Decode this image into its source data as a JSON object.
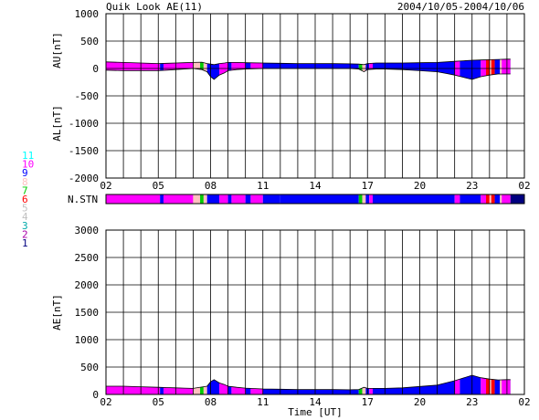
{
  "header": {
    "title": "Quik Look AE(11)",
    "date_range": "2004/10/05-2004/10/06"
  },
  "stations_label": "N.STN",
  "xlabel": "Time [UT]",
  "station_legend": [
    {
      "label": "11",
      "color": "#00ffff"
    },
    {
      "label": "10",
      "color": "#ff00ff"
    },
    {
      "label": "9",
      "color": "#0000ff"
    },
    {
      "label": "8",
      "color": "#ffc0c0"
    },
    {
      "label": "7",
      "color": "#00cc00"
    },
    {
      "label": "6",
      "color": "#ff0000"
    },
    {
      "label": "5",
      "color": "#c0c0c0"
    },
    {
      "label": "4",
      "color": "#c0c0c0"
    },
    {
      "label": "3",
      "color": "#00aaaa"
    },
    {
      "label": "2",
      "color": "#aa00aa"
    },
    {
      "label": "1",
      "color": "#000080"
    }
  ],
  "chart_data": [
    {
      "type": "area",
      "panel": "AU/AL",
      "ylabel_top": "AU[nT]",
      "ylabel_bottom": "AL[nT]",
      "ylim": [
        -2000,
        1000
      ],
      "yticks": [
        "1000",
        "500",
        "0",
        "-500",
        "-1000",
        "-1500",
        "-2000"
      ],
      "xticks": [
        "02",
        "05",
        "08",
        "11",
        "14",
        "17",
        "20",
        "23",
        "02"
      ],
      "xlim_hours": [
        2,
        26
      ],
      "grid": true,
      "series": [
        {
          "x": [
            2,
            3,
            4,
            5,
            5.5,
            6,
            6.5,
            7,
            7.5,
            7.8,
            8,
            8.2,
            8.5,
            8.8,
            9,
            9.5,
            10,
            11,
            12,
            13,
            14,
            15,
            16,
            16.5,
            16.8,
            17,
            17.5,
            18,
            19,
            20,
            21,
            21.5,
            22,
            22.5,
            23,
            23.5,
            24,
            24.5,
            25,
            25.2
          ],
          "values": [
            120,
            110,
            100,
            90,
            95,
            100,
            105,
            110,
            115,
            90,
            80,
            70,
            90,
            100,
            110,
            110,
            105,
            100,
            95,
            90,
            90,
            90,
            85,
            80,
            70,
            90,
            100,
            100,
            100,
            105,
            110,
            120,
            130,
            140,
            150,
            155,
            160,
            165,
            170,
            170
          ]
        },
        {
          "x": [
            2,
            3,
            4,
            5,
            5.5,
            6,
            6.5,
            7,
            7.5,
            7.8,
            8,
            8.2,
            8.5,
            8.8,
            9,
            9.5,
            10,
            11,
            12,
            13,
            14,
            15,
            16,
            16.5,
            16.8,
            17,
            17.5,
            18,
            19,
            20,
            21,
            21.5,
            22,
            22.5,
            23,
            23.5,
            24,
            24.5,
            25,
            25.2
          ],
          "values": [
            -30,
            -40,
            -40,
            -40,
            -30,
            -20,
            -10,
            0,
            -20,
            -60,
            -150,
            -200,
            -120,
            -80,
            -40,
            -20,
            -10,
            0,
            0,
            0,
            0,
            0,
            0,
            -10,
            -60,
            -20,
            -10,
            -10,
            -20,
            -40,
            -60,
            -90,
            -120,
            -160,
            -200,
            -150,
            -120,
            -100,
            -100,
            -100
          ]
        }
      ]
    },
    {
      "type": "area",
      "panel": "AE",
      "ylabel": "AE[nT]",
      "xlabel": "Time [UT]",
      "ylim": [
        0,
        3000
      ],
      "yticks": [
        "3000",
        "2500",
        "2000",
        "1500",
        "1000",
        "500",
        "0"
      ],
      "xticks": [
        "02",
        "05",
        "08",
        "11",
        "14",
        "17",
        "20",
        "23",
        "02"
      ],
      "xlim_hours": [
        2,
        26
      ],
      "grid": true,
      "series": [
        {
          "x": [
            2,
            3,
            4,
            5,
            5.5,
            6,
            6.5,
            7,
            7.5,
            7.8,
            8,
            8.2,
            8.5,
            8.8,
            9,
            9.5,
            10,
            11,
            12,
            13,
            14,
            15,
            16,
            16.5,
            16.8,
            17,
            17.5,
            18,
            19,
            20,
            21,
            21.5,
            22,
            22.5,
            23,
            23.5,
            24,
            24.5,
            25,
            25.2
          ],
          "values": [
            150,
            150,
            140,
            130,
            125,
            120,
            115,
            110,
            135,
            150,
            230,
            270,
            210,
            180,
            150,
            130,
            115,
            100,
            95,
            90,
            90,
            90,
            85,
            90,
            130,
            110,
            110,
            110,
            120,
            145,
            170,
            210,
            250,
            300,
            350,
            305,
            280,
            265,
            270,
            270
          ]
        }
      ]
    },
    {
      "type": "heatmap",
      "panel": "N.STN",
      "x_hours": [
        2,
        5.1,
        5.3,
        7.0,
        7.4,
        7.6,
        7.8,
        8.5,
        9.0,
        9.2,
        10.0,
        10.3,
        11.0,
        12.0,
        16.5,
        16.7,
        16.9,
        17.1,
        17.3,
        22.0,
        22.3,
        23.5,
        23.8,
        24.0,
        24.1,
        24.3,
        24.6,
        24.7,
        25.2,
        26
      ],
      "station_counts": [
        10,
        9,
        10,
        8,
        7,
        8,
        9,
        10,
        9,
        10,
        9,
        10,
        9,
        9,
        7,
        8,
        9,
        10,
        9,
        10,
        9,
        10,
        6,
        8,
        6,
        9,
        8,
        10,
        1
      ]
    }
  ]
}
